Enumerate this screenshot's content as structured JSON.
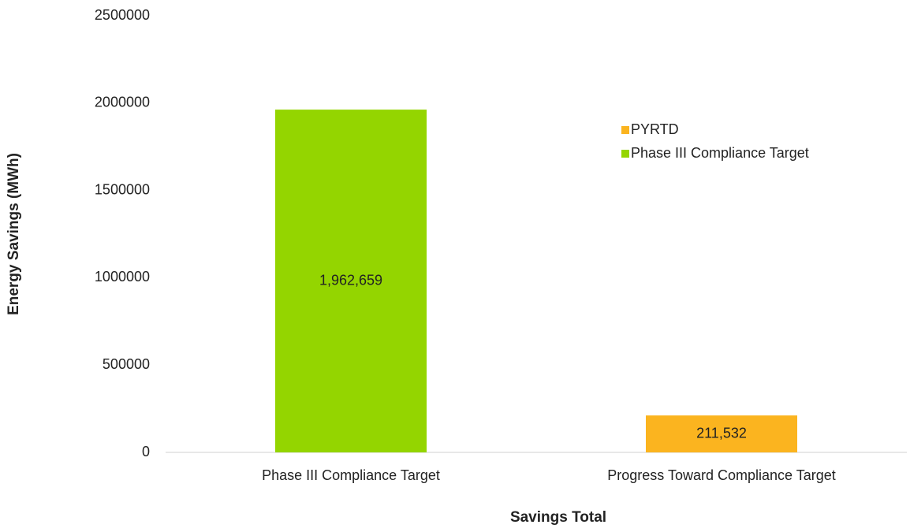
{
  "chart_data": {
    "type": "bar",
    "x_label": "Savings Total",
    "y_label": "Energy Savings (MWh)",
    "categories": [
      "Phase III Compliance Target",
      "Progress Toward Compliance Target"
    ],
    "series": [
      {
        "name": "PYRTD",
        "color": "#fbb41f",
        "values": [
          null,
          211532
        ],
        "value_labels": [
          null,
          "211,532"
        ]
      },
      {
        "name": "Phase III Compliance Target",
        "color": "#94d500",
        "values": [
          1962659,
          null
        ],
        "value_labels": [
          "1,962,659",
          null
        ]
      }
    ],
    "ylim": [
      0,
      2500000
    ],
    "yticks": [
      0,
      500000,
      1000000,
      1500000,
      2000000,
      2500000
    ],
    "grid": false,
    "legend": "upper right"
  }
}
